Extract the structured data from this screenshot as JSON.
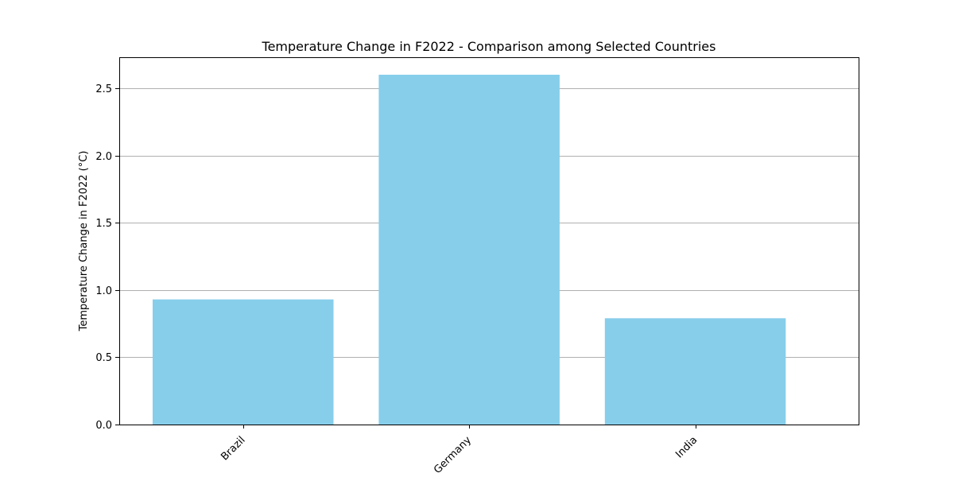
{
  "chart_data": {
    "type": "bar",
    "title": "Temperature Change in F2022 - Comparison among Selected Countries",
    "xlabel": "",
    "ylabel": "Temperature Change in F2022 (°C)",
    "categories": [
      "Brazil",
      "Germany",
      "India"
    ],
    "values": [
      0.93,
      2.6,
      0.79
    ],
    "ylim": [
      0,
      2.73
    ],
    "yticks": [
      "0.0",
      "0.5",
      "1.0",
      "1.5",
      "2.0",
      "2.5"
    ],
    "grid": "y",
    "bar_color": "#87CEEB"
  }
}
